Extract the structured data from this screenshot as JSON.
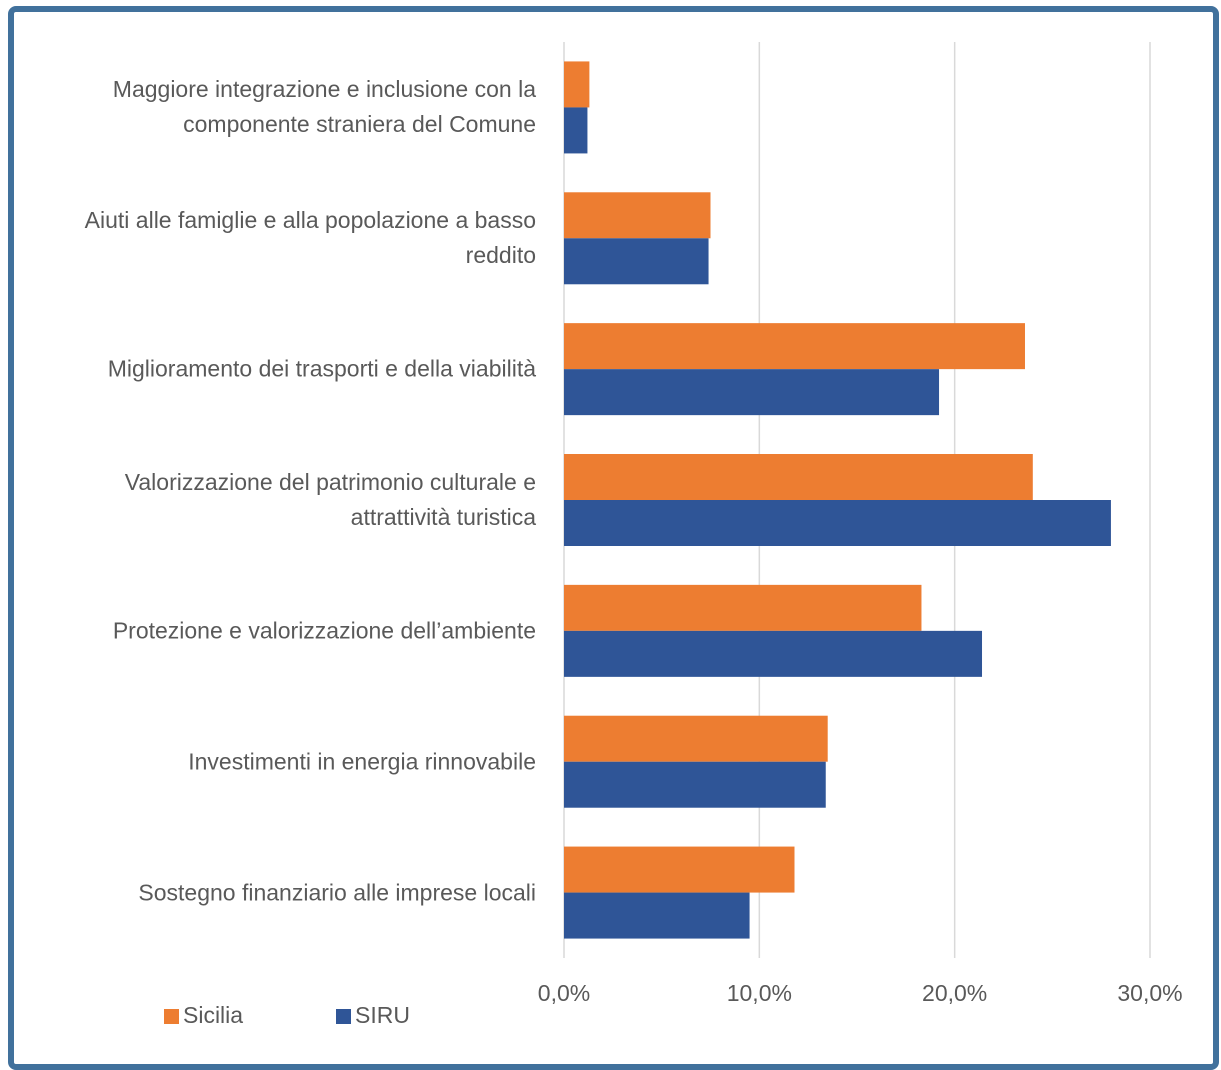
{
  "chart_data": {
    "type": "hbar",
    "categories": [
      "Maggiore integrazione e inclusione con la componente straniera del Comune",
      "Aiuti alle famiglie e alla popolazione a basso reddito",
      "Miglioramento dei trasporti e della viabilità",
      "Valorizzazione del patrimonio culturale e attrattività turistica",
      "Protezione e valorizzazione dell’ambiente",
      "Investimenti in energia rinnovabile",
      "Sostegno finanziario alle imprese locali"
    ],
    "series": [
      {
        "name": "Sicilia",
        "color": "#ED7D31",
        "values": [
          1.3,
          7.5,
          23.6,
          24.0,
          18.3,
          13.5,
          11.8
        ]
      },
      {
        "name": "SIRU",
        "color": "#2F5597",
        "values": [
          1.2,
          7.4,
          19.2,
          28.0,
          21.4,
          13.4,
          9.5
        ]
      }
    ],
    "xlim": [
      0,
      30
    ],
    "xticks": [
      {
        "value": 0,
        "label": "0,0%"
      },
      {
        "value": 10,
        "label": "10,0%"
      },
      {
        "value": 20,
        "label": "20,0%"
      },
      {
        "value": 30,
        "label": "30,0%"
      }
    ],
    "grid": true,
    "legend": "bottom-left"
  }
}
